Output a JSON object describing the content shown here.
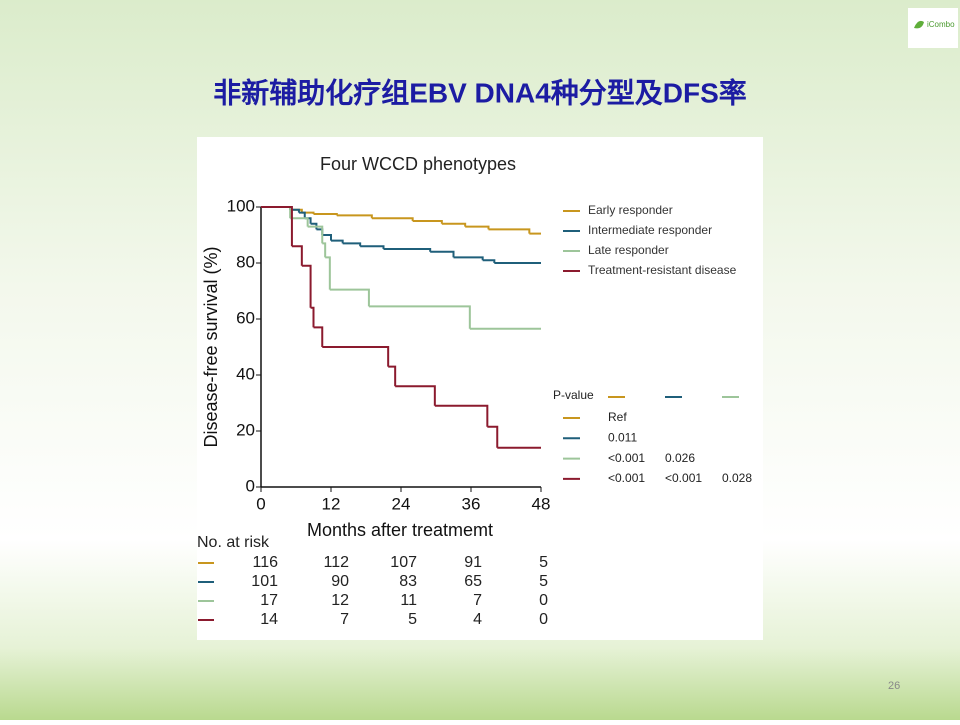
{
  "slide": {
    "title": "非新辅助化疗组EBV DNA4种分型及DFS率",
    "logo": "iCombo",
    "page_number": "26"
  },
  "chart_data": {
    "type": "line",
    "step": true,
    "title": "Four WCCD phenotypes",
    "x_label": "Months after treatmemt",
    "y_label": "Disease-free survival (%)",
    "xlim": [
      0,
      48
    ],
    "xticks": [
      0,
      12,
      24,
      36,
      48
    ],
    "ylim": [
      0,
      100
    ],
    "yticks": [
      0,
      20,
      40,
      60,
      80,
      100
    ],
    "series": [
      {
        "name": "Early responder",
        "color": "#c8961e",
        "x": [
          0,
          5,
          7,
          9,
          13,
          19,
          26,
          31,
          35,
          39,
          46,
          48
        ],
        "y": [
          100,
          99,
          98,
          97.5,
          97,
          96,
          95,
          94,
          93,
          92,
          90.5,
          90.5
        ]
      },
      {
        "name": "Intermediate responder",
        "color": "#1f5f7a",
        "x": [
          0,
          5,
          6.5,
          7.5,
          8.5,
          9.5,
          10.5,
          12,
          14,
          17,
          21,
          29,
          33,
          38,
          40,
          48
        ],
        "y": [
          100,
          99,
          98,
          96,
          94,
          92,
          90,
          88,
          87,
          86,
          85,
          84,
          82,
          81,
          80,
          80
        ]
      },
      {
        "name": "Late responder",
        "color": "#9dc59a",
        "x": [
          0,
          5,
          8,
          10.5,
          11,
          11.8,
          18.5,
          35.8,
          48
        ],
        "y": [
          100,
          96,
          93,
          87,
          82,
          70.5,
          64.5,
          56.5,
          56.5
        ]
      },
      {
        "name": "Treatment-resistant disease",
        "color": "#8b1a2e",
        "x": [
          0,
          5.3,
          7,
          8.5,
          9,
          10.5,
          21.8,
          23,
          29.8,
          38.8,
          40.5,
          48
        ],
        "y": [
          100,
          86,
          79,
          64,
          57,
          50,
          43,
          36,
          29,
          21.5,
          14,
          14
        ]
      }
    ],
    "p_value_table": {
      "title": "P-value",
      "rows": [
        [
          "Ref"
        ],
        [
          "0.011"
        ],
        [
          "<0.001",
          "0.026"
        ],
        [
          "<0.001",
          "<0.001",
          "0.028"
        ]
      ]
    },
    "risk_table": {
      "title": "No. at risk",
      "rows": [
        [
          116,
          112,
          107,
          91,
          5
        ],
        [
          101,
          90,
          83,
          65,
          5
        ],
        [
          17,
          12,
          11,
          7,
          0
        ],
        [
          14,
          7,
          5,
          4,
          0
        ]
      ]
    }
  }
}
